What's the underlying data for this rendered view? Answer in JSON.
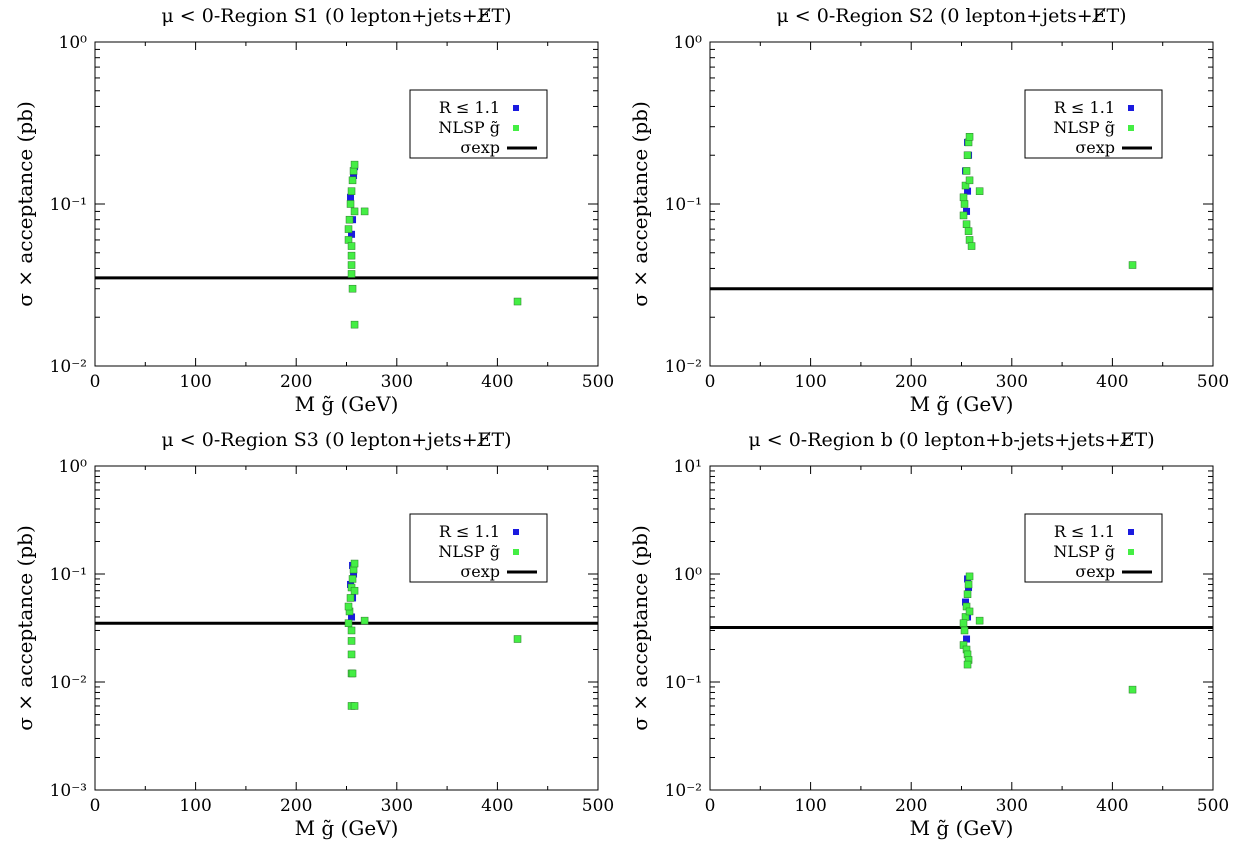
{
  "charts_meta": {
    "colors": {
      "r_series": "#1a1adf",
      "nlsp_series": "#44ee44",
      "nlsp_edge": "#2a7a2a",
      "sigma_line": "#000000"
    }
  },
  "chart_data": [
    {
      "type": "scatter",
      "title": "μ < 0-Region S1 (0 lepton+jets+E̸T)",
      "xlabel": "M g̃ (GeV)",
      "ylabel": "σ × acceptance (pb)",
      "xlim": [
        0,
        500
      ],
      "ylim": [
        0.01,
        1
      ],
      "yscale": "log",
      "x_ticks": [
        "0",
        "100",
        "200",
        "300",
        "400",
        "500"
      ],
      "y_ticks": [
        "10⁻²",
        "10⁻¹",
        "10⁰"
      ],
      "grid": false,
      "legend": {
        "position": "top-right",
        "entries": [
          "R ≤ 1.1",
          "NLSP g̃",
          "σexp"
        ]
      },
      "sigma_exp": 0.035,
      "series": [
        {
          "name": "R ≤ 1.1",
          "points": [
            [
              255,
              0.065
            ],
            [
              256,
              0.08
            ],
            [
              254,
              0.11
            ],
            [
              257,
              0.15
            ],
            [
              258,
              0.17
            ]
          ]
        },
        {
          "name": "NLSP g̃",
          "points": [
            [
              252,
              0.06
            ],
            [
              253,
              0.08
            ],
            [
              254,
              0.1
            ],
            [
              255,
              0.12
            ],
            [
              256,
              0.14
            ],
            [
              257,
              0.16
            ],
            [
              258,
              0.175
            ],
            [
              252,
              0.07
            ],
            [
              258,
              0.09
            ],
            [
              255,
              0.055
            ],
            [
              255,
              0.048
            ],
            [
              255,
              0.042
            ],
            [
              255,
              0.037
            ],
            [
              256,
              0.03
            ],
            [
              268,
              0.09
            ],
            [
              258,
              0.018
            ],
            [
              420,
              0.025
            ]
          ]
        }
      ]
    },
    {
      "type": "scatter",
      "title": "μ < 0-Region S2 (0 lepton+jets+E̸T)",
      "xlabel": "M g̃ (GeV)",
      "ylabel": "σ × acceptance (pb)",
      "xlim": [
        0,
        500
      ],
      "ylim": [
        0.01,
        1
      ],
      "yscale": "log",
      "x_ticks": [
        "0",
        "100",
        "200",
        "300",
        "400",
        "500"
      ],
      "y_ticks": [
        "10⁻²",
        "10⁻¹",
        "10⁰"
      ],
      "grid": false,
      "legend": {
        "position": "top-right",
        "entries": [
          "R ≤ 1.1",
          "NLSP g̃",
          "σexp"
        ]
      },
      "sigma_exp": 0.03,
      "series": [
        {
          "name": "R ≤ 1.1",
          "points": [
            [
              255,
              0.09
            ],
            [
              256,
              0.12
            ],
            [
              254,
              0.16
            ],
            [
              257,
              0.2
            ],
            [
              256,
              0.24
            ]
          ]
        },
        {
          "name": "NLSP g̃",
          "points": [
            [
              252,
              0.085
            ],
            [
              253,
              0.1
            ],
            [
              254,
              0.13
            ],
            [
              255,
              0.16
            ],
            [
              256,
              0.2
            ],
            [
              257,
              0.24
            ],
            [
              258,
              0.26
            ],
            [
              252,
              0.11
            ],
            [
              258,
              0.14
            ],
            [
              255,
              0.075
            ],
            [
              257,
              0.068
            ],
            [
              258,
              0.06
            ],
            [
              260,
              0.055
            ],
            [
              268,
              0.12
            ],
            [
              420,
              0.042
            ]
          ]
        }
      ]
    },
    {
      "type": "scatter",
      "title": "μ < 0-Region S3 (0 lepton+jets+E̸T)",
      "xlabel": "M g̃ (GeV)",
      "ylabel": "σ × acceptance (pb)",
      "xlim": [
        0,
        500
      ],
      "ylim": [
        0.001,
        1
      ],
      "yscale": "log",
      "x_ticks": [
        "0",
        "100",
        "200",
        "300",
        "400",
        "500"
      ],
      "y_ticks": [
        "10⁻³",
        "10⁻²",
        "10⁻¹",
        "10⁰"
      ],
      "grid": false,
      "legend": {
        "position": "top-right",
        "entries": [
          "R ≤ 1.1",
          "NLSP g̃",
          "σexp"
        ]
      },
      "sigma_exp": 0.035,
      "series": [
        {
          "name": "R ≤ 1.1",
          "points": [
            [
              255,
              0.04
            ],
            [
              256,
              0.06
            ],
            [
              254,
              0.08
            ],
            [
              257,
              0.1
            ],
            [
              256,
              0.12
            ]
          ]
        },
        {
          "name": "NLSP g̃",
          "points": [
            [
              252,
              0.035
            ],
            [
              253,
              0.045
            ],
            [
              254,
              0.06
            ],
            [
              255,
              0.075
            ],
            [
              256,
              0.09
            ],
            [
              257,
              0.11
            ],
            [
              258,
              0.125
            ],
            [
              252,
              0.05
            ],
            [
              258,
              0.07
            ],
            [
              255,
              0.03
            ],
            [
              255,
              0.024
            ],
            [
              255,
              0.018
            ],
            [
              255,
              0.012
            ],
            [
              256,
              0.012
            ],
            [
              255,
              0.006
            ],
            [
              258,
              0.006
            ],
            [
              268,
              0.037
            ],
            [
              420,
              0.025
            ]
          ]
        }
      ]
    },
    {
      "type": "scatter",
      "title": "μ < 0-Region b (0 lepton+b-jets+jets+E̸T)",
      "xlabel": "M g̃ (GeV)",
      "ylabel": "σ × acceptance (pb)",
      "xlim": [
        0,
        500
      ],
      "ylim": [
        0.01,
        10
      ],
      "yscale": "log",
      "x_ticks": [
        "0",
        "100",
        "200",
        "300",
        "400",
        "500"
      ],
      "y_ticks": [
        "10⁻²",
        "10⁻¹",
        "10⁰",
        "10¹"
      ],
      "grid": false,
      "legend": {
        "position": "top-right",
        "entries": [
          "R ≤ 1.1",
          "NLSP g̃",
          "σexp"
        ]
      },
      "sigma_exp": 0.32,
      "series": [
        {
          "name": "R ≤ 1.1",
          "points": [
            [
              255,
              0.25
            ],
            [
              256,
              0.4
            ],
            [
              254,
              0.55
            ],
            [
              257,
              0.75
            ],
            [
              256,
              0.9
            ]
          ]
        },
        {
          "name": "NLSP g̃",
          "points": [
            [
              252,
              0.22
            ],
            [
              253,
              0.3
            ],
            [
              254,
              0.4
            ],
            [
              255,
              0.5
            ],
            [
              256,
              0.65
            ],
            [
              257,
              0.8
            ],
            [
              258,
              0.95
            ],
            [
              252,
              0.35
            ],
            [
              258,
              0.45
            ],
            [
              255,
              0.2
            ],
            [
              256,
              0.18
            ],
            [
              257,
              0.16
            ],
            [
              256,
              0.145
            ],
            [
              268,
              0.37
            ],
            [
              420,
              0.085
            ]
          ]
        }
      ]
    }
  ]
}
